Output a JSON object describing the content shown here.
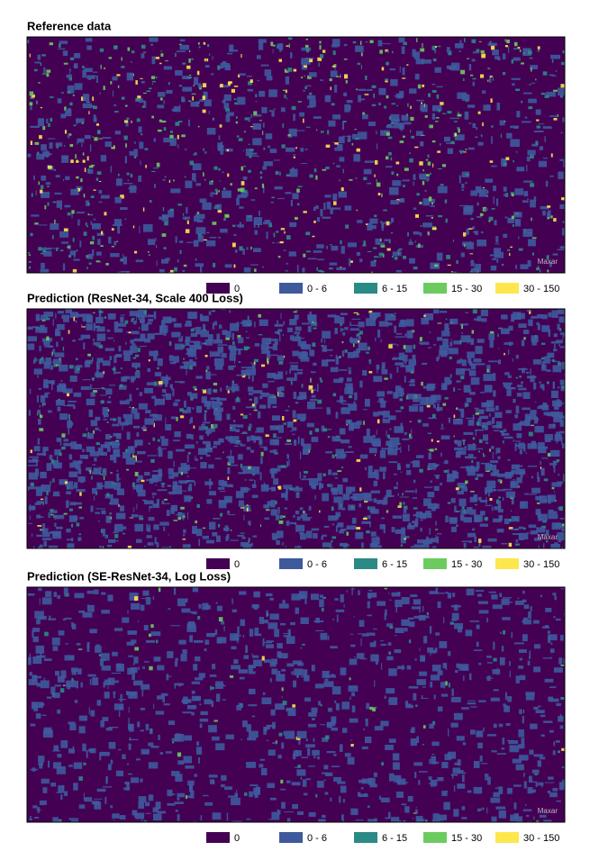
{
  "panels": [
    {
      "title": "Reference data",
      "watermark": "Maxar"
    },
    {
      "title": "Prediction (ResNet-34, Scale 400 Loss)",
      "watermark": "Maxar"
    },
    {
      "title": "Prediction (SE-ResNet-34, Log Loss)",
      "watermark": "Maxar"
    }
  ],
  "legend": [
    {
      "label": "0",
      "color": "#440154"
    },
    {
      "label": "0 - 6",
      "color": "#3e5a9c"
    },
    {
      "label": "6 - 15",
      "color": "#2a8a86"
    },
    {
      "label": "15 - 30",
      "color": "#6ccb5f"
    },
    {
      "label": "30 - 150",
      "color": "#fde74c"
    }
  ]
}
